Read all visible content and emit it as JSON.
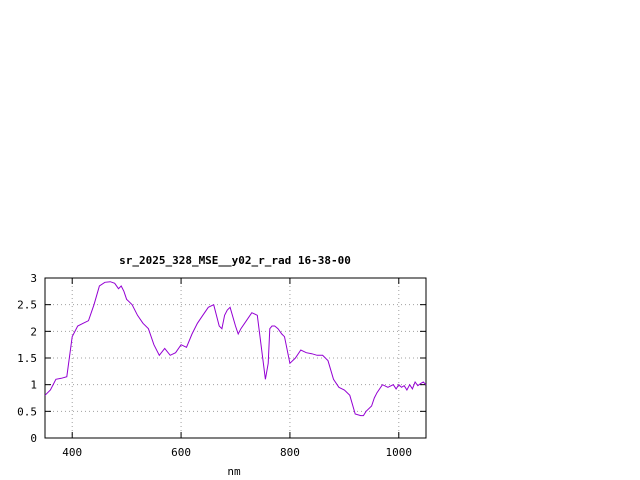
{
  "chart_data": {
    "type": "line",
    "title": "sr_2025_328_MSE__y02_r_rad 16-38-00",
    "xlabel": "nm",
    "ylabel": "",
    "xlim": [
      350,
      1050
    ],
    "ylim": [
      0,
      3
    ],
    "grid": true,
    "line_color": "#9400d3",
    "x_ticks": [
      400,
      600,
      800,
      1000
    ],
    "y_ticks": [
      0,
      0.5,
      1,
      1.5,
      2,
      2.5,
      3
    ],
    "x_tick_labels": [
      "400",
      "600",
      "800",
      "1000"
    ],
    "y_tick_labels": [
      "0",
      "0.5",
      "1",
      "1.5",
      "2",
      "2.5",
      "3"
    ],
    "series": [
      {
        "name": "",
        "x": [
          350,
          360,
          370,
          380,
          390,
          400,
          410,
          420,
          430,
          440,
          450,
          460,
          470,
          478,
          485,
          490,
          495,
          500,
          510,
          520,
          530,
          540,
          550,
          560,
          570,
          580,
          590,
          600,
          610,
          620,
          630,
          640,
          650,
          660,
          670,
          675,
          680,
          685,
          690,
          700,
          705,
          710,
          720,
          730,
          740,
          750,
          755,
          760,
          763,
          767,
          772,
          778,
          785,
          790,
          800,
          810,
          820,
          830,
          840,
          850,
          860,
          870,
          880,
          890,
          900,
          910,
          920,
          930,
          935,
          940,
          950,
          955,
          960,
          970,
          980,
          990,
          995,
          1000,
          1005,
          1010,
          1015,
          1020,
          1025,
          1030,
          1035,
          1040,
          1045,
          1050
        ],
        "y": [
          0.8,
          0.9,
          1.1,
          1.12,
          1.15,
          1.9,
          2.1,
          2.15,
          2.2,
          2.5,
          2.85,
          2.92,
          2.93,
          2.9,
          2.8,
          2.85,
          2.75,
          2.6,
          2.5,
          2.3,
          2.15,
          2.05,
          1.75,
          1.55,
          1.68,
          1.55,
          1.6,
          1.75,
          1.7,
          1.95,
          2.15,
          2.3,
          2.45,
          2.5,
          2.1,
          2.05,
          2.3,
          2.4,
          2.45,
          2.1,
          1.95,
          2.05,
          2.2,
          2.35,
          2.3,
          1.5,
          1.1,
          1.4,
          2.05,
          2.1,
          2.1,
          2.05,
          1.95,
          1.9,
          1.4,
          1.5,
          1.65,
          1.6,
          1.58,
          1.55,
          1.55,
          1.45,
          1.1,
          0.95,
          0.9,
          0.8,
          0.45,
          0.42,
          0.42,
          0.5,
          0.6,
          0.75,
          0.85,
          1.0,
          0.95,
          1.0,
          0.92,
          1.0,
          0.95,
          0.98,
          0.9,
          1.0,
          0.92,
          1.05,
          0.98,
          1.02,
          1.05,
          1.0
        ]
      }
    ]
  }
}
